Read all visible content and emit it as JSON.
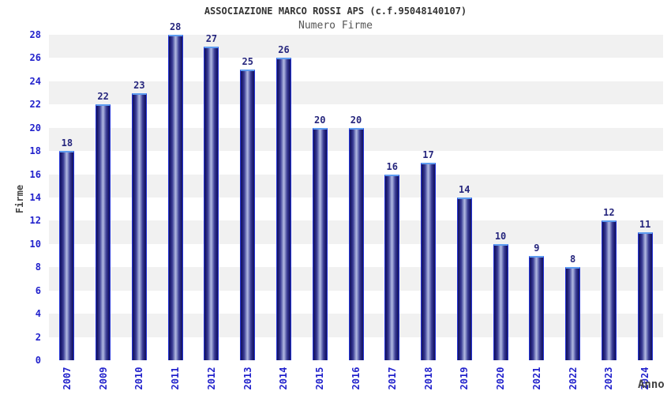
{
  "chart_data": {
    "type": "bar",
    "title": "ASSOCIAZIONE MARCO ROSSI APS (c.f.95048140107)",
    "subtitle": "Numero Firme",
    "xlabel": "Anno",
    "ylabel": "Firme",
    "categories": [
      "2007",
      "2009",
      "2010",
      "2011",
      "2012",
      "2013",
      "2014",
      "2015",
      "2016",
      "2017",
      "2018",
      "2019",
      "2020",
      "2021",
      "2022",
      "2023",
      "2024"
    ],
    "values": [
      18,
      22,
      23,
      28,
      27,
      25,
      26,
      20,
      20,
      16,
      17,
      14,
      10,
      9,
      8,
      12,
      11
    ],
    "ylim": [
      0,
      28
    ],
    "ytick_step": 2,
    "grid": "alternating-horizontal-bands",
    "legend": "none",
    "bar_value_labels": true,
    "x_tick_rotation_deg": -90,
    "colors": {
      "bar_edge": "#2433d6",
      "bar_dark": "#15155e",
      "bar_mid": "#3d3f97",
      "bar_light": "#b3b9e2",
      "bar_cap": "#5e9cf0",
      "tick_label": "#2222cc",
      "value_label": "#26267d",
      "band_gray": "#f1f1f1",
      "band_white": "#ffffff",
      "plot_border": "#cccccc",
      "title": "#333333",
      "subtitle": "#555555",
      "axis_label": "#444444",
      "background": "#ffffff"
    }
  }
}
